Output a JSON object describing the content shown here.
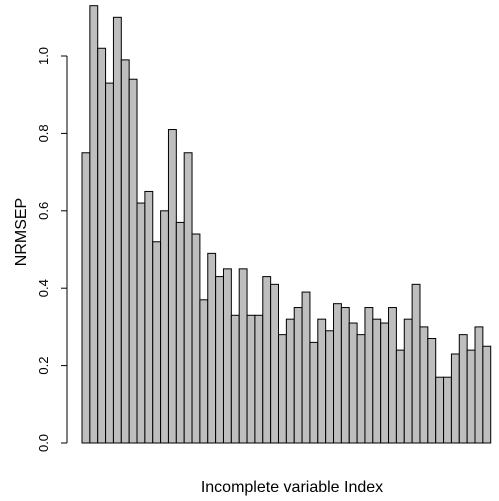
{
  "chart_data": {
    "type": "bar",
    "title": "",
    "xlabel": "Incomplete variable Index",
    "ylabel": "NRMSEP",
    "ylim": [
      0,
      1.15
    ],
    "y_ticks": [
      "0.0",
      "0.2",
      "0.4",
      "0.6",
      "0.8",
      "1.0"
    ],
    "x_tick_labels": "none",
    "grid": false,
    "bar_color": "#bebebe",
    "values": [
      0.75,
      1.13,
      1.02,
      0.93,
      1.1,
      0.99,
      0.94,
      0.62,
      0.65,
      0.52,
      0.6,
      0.81,
      0.57,
      0.75,
      0.54,
      0.37,
      0.49,
      0.43,
      0.45,
      0.33,
      0.45,
      0.33,
      0.33,
      0.43,
      0.41,
      0.28,
      0.32,
      0.35,
      0.39,
      0.26,
      0.32,
      0.29,
      0.36,
      0.35,
      0.31,
      0.28,
      0.35,
      0.32,
      0.31,
      0.35,
      0.24,
      0.32,
      0.41,
      0.3,
      0.27,
      0.17,
      0.17,
      0.23,
      0.28,
      0.24,
      0.3,
      0.25
    ]
  }
}
